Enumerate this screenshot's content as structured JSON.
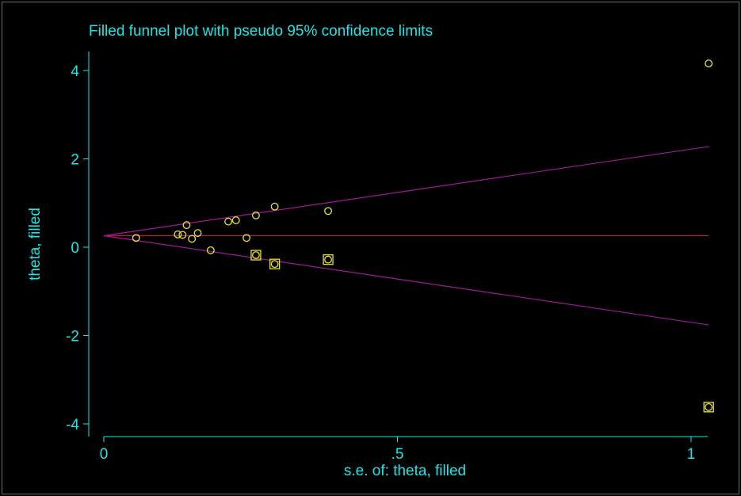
{
  "chart_data": {
    "type": "scatter",
    "title": "Filled funnel plot with pseudo 95% confidence limits",
    "xlabel": "s.e. of: theta, filled",
    "ylabel": "theta, filled",
    "xlim": [
      0,
      1.04
    ],
    "ylim": [
      -4.3,
      4.3
    ],
    "x_ticks": [
      {
        "value": 0,
        "label": "0"
      },
      {
        "value": 0.5,
        "label": ".5"
      },
      {
        "value": 1,
        "label": "1"
      }
    ],
    "y_ticks": [
      {
        "value": -4,
        "label": "-4"
      },
      {
        "value": -2,
        "label": "-2"
      },
      {
        "value": 0,
        "label": "0"
      },
      {
        "value": 2,
        "label": "2"
      },
      {
        "value": 4,
        "label": "4"
      }
    ],
    "pooled_estimate": 0.26,
    "confidence_limits": {
      "level": 0.95,
      "z": 1.96,
      "se_max": 1.03
    },
    "series": [
      {
        "marker": "circle",
        "points": [
          {
            "x": 0.055,
            "y": 0.21
          },
          {
            "x": 0.126,
            "y": 0.29
          },
          {
            "x": 0.134,
            "y": 0.28
          },
          {
            "x": 0.141,
            "y": 0.5
          },
          {
            "x": 0.15,
            "y": 0.19
          },
          {
            "x": 0.16,
            "y": 0.32
          },
          {
            "x": 0.182,
            "y": -0.07
          },
          {
            "x": 0.212,
            "y": 0.58
          },
          {
            "x": 0.225,
            "y": 0.61
          },
          {
            "x": 0.243,
            "y": 0.21
          },
          {
            "x": 0.259,
            "y": 0.72
          },
          {
            "x": 0.291,
            "y": 0.92
          },
          {
            "x": 0.382,
            "y": 0.82
          },
          {
            "x": 1.03,
            "y": 4.16
          },
          {
            "x": 0.259,
            "y": -0.18
          },
          {
            "x": 0.291,
            "y": -0.38
          },
          {
            "x": 0.382,
            "y": -0.28
          },
          {
            "x": 1.03,
            "y": -3.62
          }
        ]
      },
      {
        "marker": "square",
        "points": [
          {
            "x": 0.259,
            "y": -0.18
          },
          {
            "x": 0.291,
            "y": -0.38
          },
          {
            "x": 0.382,
            "y": -0.28
          },
          {
            "x": 1.03,
            "y": -3.62
          }
        ]
      }
    ],
    "colors": {
      "text": "#1ee6e6",
      "axis": "#1ee6e6",
      "marker": "#e6e62d",
      "pooled_line": "#c4143c",
      "ci_line": "#a0189b",
      "background": "#000000"
    }
  }
}
